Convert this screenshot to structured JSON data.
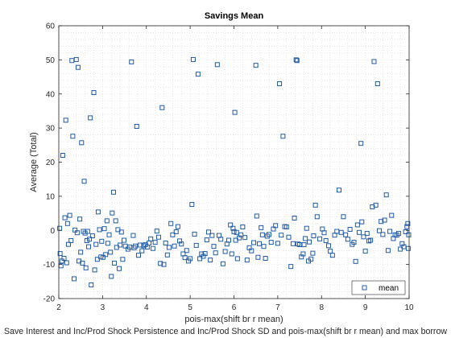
{
  "chart_data": {
    "type": "scatter",
    "title": "Savings Mean",
    "xlabel": "pois-max(shift br r mean)",
    "ylabel": "Average (Total)",
    "footer_text": "Save Interest and Inc/Prod Shock Persistence and Inc/Prod Shock SD and pois-max(shift br r mean) and max borrow",
    "xlim": [
      2,
      10
    ],
    "ylim": [
      -20,
      60
    ],
    "xticks": [
      "2",
      "3",
      "4",
      "5",
      "6",
      "7",
      "8",
      "9",
      "10"
    ],
    "yticks": [
      "-20",
      "-10",
      "0",
      "10",
      "20",
      "30",
      "40",
      "50",
      "60"
    ],
    "grid": "minor-dotted",
    "legend": {
      "position": "bottom-right",
      "entries": [
        "mean"
      ]
    },
    "colors": {
      "marker": "#1f5aa6",
      "axis": "#262626",
      "grid": "#dcdcdc"
    },
    "series": [
      {
        "name": "mean",
        "marker": "square",
        "points": [
          [
            2.02,
            0.6
          ],
          [
            2.03,
            -6.8
          ],
          [
            2.05,
            -10.4
          ],
          [
            2.07,
            -9.0
          ],
          [
            2.09,
            22.0
          ],
          [
            2.12,
            -8.2
          ],
          [
            2.14,
            3.7
          ],
          [
            2.16,
            32.3
          ],
          [
            2.18,
            -9.5
          ],
          [
            2.2,
            2.0
          ],
          [
            2.22,
            -4.1
          ],
          [
            2.25,
            4.4
          ],
          [
            2.28,
            -3.0
          ],
          [
            2.3,
            49.8
          ],
          [
            2.32,
            27.6
          ],
          [
            2.35,
            -14.2
          ],
          [
            2.37,
            0.1
          ],
          [
            2.4,
            50.1
          ],
          [
            2.42,
            -0.7
          ],
          [
            2.44,
            47.8
          ],
          [
            2.46,
            -9.0
          ],
          [
            2.48,
            3.3
          ],
          [
            2.5,
            -6.4
          ],
          [
            2.52,
            25.7
          ],
          [
            2.54,
            -9.6
          ],
          [
            2.56,
            -0.3
          ],
          [
            2.58,
            14.4
          ],
          [
            2.6,
            -0.8
          ],
          [
            2.62,
            -11.0
          ],
          [
            2.64,
            -3.0
          ],
          [
            2.66,
            -0.3
          ],
          [
            2.68,
            -4.8
          ],
          [
            2.7,
            -2.6
          ],
          [
            2.72,
            33.0
          ],
          [
            2.74,
            -16.0
          ],
          [
            2.77,
            -1.6
          ],
          [
            2.8,
            40.4
          ],
          [
            2.82,
            -11.6
          ],
          [
            2.85,
            -4.1
          ],
          [
            2.88,
            -8.5
          ],
          [
            2.9,
            5.4
          ],
          [
            2.93,
            0.2
          ],
          [
            2.96,
            -7.8
          ],
          [
            2.98,
            -3.2
          ],
          [
            3.01,
            -7.9
          ],
          [
            3.04,
            0.5
          ],
          [
            3.07,
            -7.1
          ],
          [
            3.1,
            2.8
          ],
          [
            3.12,
            -3.8
          ],
          [
            3.15,
            -1.3
          ],
          [
            3.18,
            -6.4
          ],
          [
            3.2,
            -13.5
          ],
          [
            3.22,
            5.1
          ],
          [
            3.25,
            11.2
          ],
          [
            3.27,
            -9.6
          ],
          [
            3.3,
            2.8
          ],
          [
            3.32,
            -5.0
          ],
          [
            3.35,
            0.2
          ],
          [
            3.38,
            -11.2
          ],
          [
            3.4,
            -4.3
          ],
          [
            3.43,
            -0.5
          ],
          [
            3.46,
            -8.5
          ],
          [
            3.49,
            -2.9
          ],
          [
            3.52,
            -4.6
          ],
          [
            3.58,
            -5.5
          ],
          [
            3.62,
            -4.9
          ],
          [
            3.66,
            49.4
          ],
          [
            3.7,
            -1.5
          ],
          [
            3.72,
            -5.1
          ],
          [
            3.75,
            -4.6
          ],
          [
            3.78,
            30.5
          ],
          [
            3.82,
            -7.3
          ],
          [
            3.86,
            -4.3
          ],
          [
            3.9,
            -6.0
          ],
          [
            3.94,
            -4.5
          ],
          [
            3.98,
            -4.2
          ],
          [
            4.02,
            -4.9
          ],
          [
            4.06,
            -3.7
          ],
          [
            4.1,
            -2.5
          ],
          [
            4.15,
            -5.3
          ],
          [
            4.2,
            -3.5
          ],
          [
            4.24,
            -0.2
          ],
          [
            4.28,
            -2.0
          ],
          [
            4.32,
            -9.7
          ],
          [
            4.36,
            36.0
          ],
          [
            4.4,
            -10.0
          ],
          [
            4.44,
            -3.7
          ],
          [
            4.48,
            -7.2
          ],
          [
            4.52,
            -5.0
          ],
          [
            4.56,
            2.0
          ],
          [
            4.6,
            -1.3
          ],
          [
            4.64,
            -4.6
          ],
          [
            4.68,
            -0.4
          ],
          [
            4.72,
            1.1
          ],
          [
            4.76,
            -3.1
          ],
          [
            4.8,
            -4.0
          ],
          [
            4.84,
            -6.9
          ],
          [
            4.88,
            -8.0
          ],
          [
            4.92,
            -5.9
          ],
          [
            4.96,
            -9.0
          ],
          [
            5.0,
            -8.3
          ],
          [
            5.04,
            7.6
          ],
          [
            5.07,
            50.1
          ],
          [
            5.1,
            -1.1
          ],
          [
            5.14,
            -4.4
          ],
          [
            5.18,
            45.8
          ],
          [
            5.22,
            -8.3
          ],
          [
            5.26,
            -6.9
          ],
          [
            5.3,
            -7.6
          ],
          [
            5.34,
            -6.8
          ],
          [
            5.38,
            -2.8
          ],
          [
            5.42,
            -0.5
          ],
          [
            5.46,
            -8.7
          ],
          [
            5.5,
            -1.5
          ],
          [
            5.54,
            -4.7
          ],
          [
            5.58,
            -6.6
          ],
          [
            5.62,
            48.6
          ],
          [
            5.66,
            -1.5
          ],
          [
            5.7,
            -2.6
          ],
          [
            5.75,
            -9.8
          ],
          [
            5.8,
            -6.2
          ],
          [
            5.84,
            -4.0
          ],
          [
            5.88,
            -2.9
          ],
          [
            5.92,
            1.6
          ],
          [
            5.95,
            -6.9
          ],
          [
            5.98,
            0.6
          ],
          [
            6.0,
            -0.4
          ],
          [
            6.02,
            34.6
          ],
          [
            6.04,
            -2.9
          ],
          [
            6.06,
            -0.6
          ],
          [
            6.08,
            -8.3
          ],
          [
            6.12,
            -2.2
          ],
          [
            6.16,
            -1.3
          ],
          [
            6.2,
            1.0
          ],
          [
            6.25,
            -2.1
          ],
          [
            6.3,
            -8.7
          ],
          [
            6.35,
            -5.1
          ],
          [
            6.4,
            -6.0
          ],
          [
            6.45,
            -3.6
          ],
          [
            6.5,
            48.4
          ],
          [
            6.52,
            4.2
          ],
          [
            6.55,
            -7.9
          ],
          [
            6.58,
            -3.9
          ],
          [
            6.62,
            0.8
          ],
          [
            6.65,
            -1.3
          ],
          [
            6.68,
            -4.7
          ],
          [
            6.72,
            -8.2
          ],
          [
            6.76,
            -1.7
          ],
          [
            6.8,
            -1.2
          ],
          [
            6.85,
            -3.5
          ],
          [
            6.9,
            0.4
          ],
          [
            6.95,
            1.4
          ],
          [
            7.0,
            -3.8
          ],
          [
            7.04,
            43.0
          ],
          [
            7.08,
            -1.4
          ],
          [
            7.12,
            27.6
          ],
          [
            7.16,
            1.1
          ],
          [
            7.2,
            1.0
          ],
          [
            7.25,
            -2.0
          ],
          [
            7.3,
            -10.6
          ],
          [
            7.35,
            -3.9
          ],
          [
            7.38,
            3.6
          ],
          [
            7.42,
            50.0
          ],
          [
            7.44,
            49.8
          ],
          [
            7.46,
            -4.0
          ],
          [
            7.5,
            -4.2
          ],
          [
            7.54,
            -7.8
          ],
          [
            7.58,
            -6.9
          ],
          [
            7.6,
            -4.2
          ],
          [
            7.63,
            -2.4
          ],
          [
            7.66,
            0.6
          ],
          [
            7.7,
            -9.0
          ],
          [
            7.72,
            -3.4
          ],
          [
            7.76,
            -8.4
          ],
          [
            7.8,
            -6.7
          ],
          [
            7.82,
            -1.6
          ],
          [
            7.86,
            7.4
          ],
          [
            7.9,
            4.0
          ],
          [
            7.96,
            -2.5
          ],
          [
            8.02,
            0.4
          ],
          [
            8.06,
            -0.7
          ],
          [
            8.1,
            -3.0
          ],
          [
            8.16,
            -4.5
          ],
          [
            8.2,
            -6.1
          ],
          [
            8.25,
            -7.3
          ],
          [
            8.3,
            -1.4
          ],
          [
            8.35,
            -0.3
          ],
          [
            8.4,
            11.8
          ],
          [
            8.45,
            -0.6
          ],
          [
            8.5,
            4.0
          ],
          [
            8.55,
            -1.3
          ],
          [
            8.6,
            -2.6
          ],
          [
            8.65,
            0.3
          ],
          [
            8.7,
            -4.1
          ],
          [
            8.74,
            -3.5
          ],
          [
            8.78,
            -9.1
          ],
          [
            8.82,
            1.6
          ],
          [
            8.86,
            -0.6
          ],
          [
            8.9,
            25.5
          ],
          [
            8.92,
            2.5
          ],
          [
            8.96,
            -1.9
          ],
          [
            9.0,
            -6.1
          ],
          [
            9.04,
            -0.9
          ],
          [
            9.08,
            -3.1
          ],
          [
            9.12,
            -2.9
          ],
          [
            9.16,
            6.9
          ],
          [
            9.2,
            49.5
          ],
          [
            9.24,
            7.4
          ],
          [
            9.28,
            43.0
          ],
          [
            9.32,
            -0.1
          ],
          [
            9.36,
            2.6
          ],
          [
            9.4,
            -1.2
          ],
          [
            9.44,
            3.0
          ],
          [
            9.48,
            10.4
          ],
          [
            9.52,
            -5.9
          ],
          [
            9.56,
            -0.3
          ],
          [
            9.6,
            4.4
          ],
          [
            9.64,
            -2.4
          ],
          [
            9.68,
            -1.3
          ],
          [
            9.72,
            -1.4
          ],
          [
            9.76,
            -0.9
          ],
          [
            9.8,
            -5.5
          ],
          [
            9.84,
            -3.9
          ],
          [
            9.88,
            -4.8
          ],
          [
            9.92,
            -0.4
          ],
          [
            9.95,
            1.1
          ],
          [
            9.97,
            2.0
          ],
          [
            9.98,
            -5.3
          ],
          [
            9.99,
            -1.3
          ]
        ]
      }
    ]
  }
}
